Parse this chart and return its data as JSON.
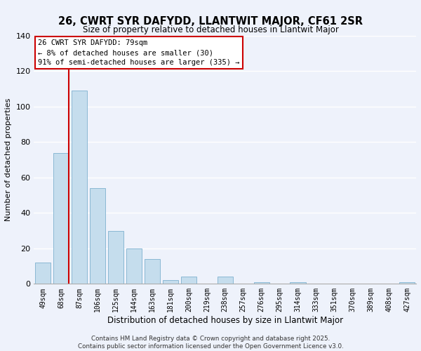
{
  "title": "26, CWRT SYR DAFYDD, LLANTWIT MAJOR, CF61 2SR",
  "subtitle": "Size of property relative to detached houses in Llantwit Major",
  "xlabel": "Distribution of detached houses by size in Llantwit Major",
  "ylabel": "Number of detached properties",
  "bar_labels": [
    "49sqm",
    "68sqm",
    "87sqm",
    "106sqm",
    "125sqm",
    "144sqm",
    "163sqm",
    "181sqm",
    "200sqm",
    "219sqm",
    "238sqm",
    "257sqm",
    "276sqm",
    "295sqm",
    "314sqm",
    "333sqm",
    "351sqm",
    "370sqm",
    "389sqm",
    "408sqm",
    "427sqm"
  ],
  "bar_values": [
    12,
    74,
    109,
    54,
    30,
    20,
    14,
    2,
    4,
    0,
    4,
    0,
    1,
    0,
    1,
    0,
    0,
    0,
    0,
    0,
    1
  ],
  "bar_color": "#c5dded",
  "bar_edge_color": "#8ab8d4",
  "ylim": [
    0,
    140
  ],
  "yticks": [
    0,
    20,
    40,
    60,
    80,
    100,
    120,
    140
  ],
  "vline_color": "#cc0000",
  "annotation_title": "26 CWRT SYR DAFYDD: 79sqm",
  "annotation_line1": "← 8% of detached houses are smaller (30)",
  "annotation_line2": "91% of semi-detached houses are larger (335) →",
  "annotation_box_color": "#ffffff",
  "annotation_box_edge": "#cc0000",
  "footer_line1": "Contains HM Land Registry data © Crown copyright and database right 2025.",
  "footer_line2": "Contains public sector information licensed under the Open Government Licence v3.0.",
  "background_color": "#eef2fb",
  "grid_color": "#ffffff",
  "title_fontsize": 10.5,
  "subtitle_fontsize": 8.5,
  "ylabel_fontsize": 8,
  "xlabel_fontsize": 8.5
}
